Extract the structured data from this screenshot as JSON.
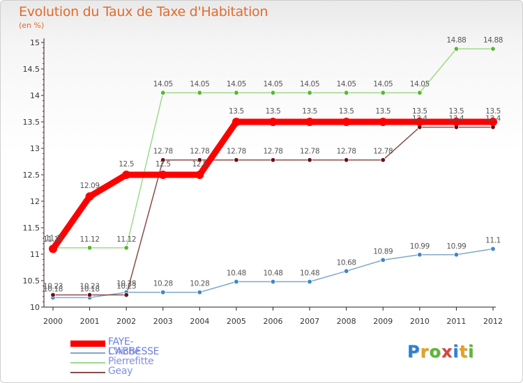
{
  "title": "Evolution du Taux de Taxe d'Habitation",
  "subtitle": "(en %)",
  "logo": {
    "text": "Proxiti",
    "colors": [
      "#2a7fd4",
      "#e8a317",
      "#5cb82e",
      "#d64541",
      "#2a7fd4",
      "#e8a317",
      "#5cb82e"
    ]
  },
  "chart_data": {
    "type": "line",
    "x": [
      2000,
      2001,
      2002,
      2003,
      2004,
      2005,
      2006,
      2007,
      2008,
      2009,
      2010,
      2011,
      2012
    ],
    "ylim": [
      10,
      15
    ],
    "yticks": [
      10,
      10.5,
      11,
      11.5,
      12,
      12.5,
      13,
      13.5,
      14,
      14.5,
      15
    ],
    "grid": false,
    "legend_position": "bottom-left",
    "series": [
      {
        "name": "FAYE-L'ABBESSE",
        "color": "#ff0000",
        "dot": "#ff0000",
        "values": [
          11.1,
          12.09,
          12.5,
          12.5,
          12.5,
          13.5,
          13.5,
          13.5,
          13.5,
          13.5,
          13.5,
          13.5,
          13.5
        ],
        "labels": [
          "11.1",
          "12.09",
          "12.5",
          "12.5",
          "12.5",
          "13.5",
          "13.5",
          "13.5",
          "13.5",
          "13.5",
          "13.5",
          "13.5",
          "13.5"
        ]
      },
      {
        "name": "Chiché",
        "color": "#7fa7c9",
        "dot": "#3a87cf",
        "values": [
          10.18,
          10.18,
          10.28,
          10.28,
          10.28,
          10.48,
          10.48,
          10.48,
          10.68,
          10.89,
          10.99,
          10.99,
          11.1
        ],
        "labels": [
          "10.18",
          "10.18",
          "10.28",
          "10.28",
          "10.28",
          "10.48",
          "10.48",
          "10.48",
          "10.68",
          "10.89",
          "10.99",
          "10.99",
          "11.1"
        ]
      },
      {
        "name": "Pierrefitte",
        "color": "#9ed98a",
        "dot": "#55b82d",
        "values": [
          11.12,
          11.12,
          11.12,
          14.05,
          14.05,
          14.05,
          14.05,
          14.05,
          14.05,
          14.05,
          14.05,
          14.88,
          14.88
        ],
        "labels": [
          "11.12",
          "11.12",
          "11.12",
          "14.05",
          "14.05",
          "14.05",
          "14.05",
          "14.05",
          "14.05",
          "14.05",
          "14.05",
          "14.88",
          "14.88"
        ]
      },
      {
        "name": "Geay",
        "color": "#8a4a4a",
        "dot": "#6e1010",
        "values": [
          10.23,
          10.23,
          10.23,
          12.78,
          12.78,
          12.78,
          12.78,
          12.78,
          12.78,
          12.78,
          13.4,
          13.4,
          13.4
        ],
        "labels": [
          "10.23",
          "10.23",
          "10.23",
          "12.78",
          "12.78",
          "12.78",
          "12.78",
          "12.78",
          "12.78",
          "12.78",
          "13.4",
          "13.4",
          "13.4"
        ]
      }
    ]
  }
}
